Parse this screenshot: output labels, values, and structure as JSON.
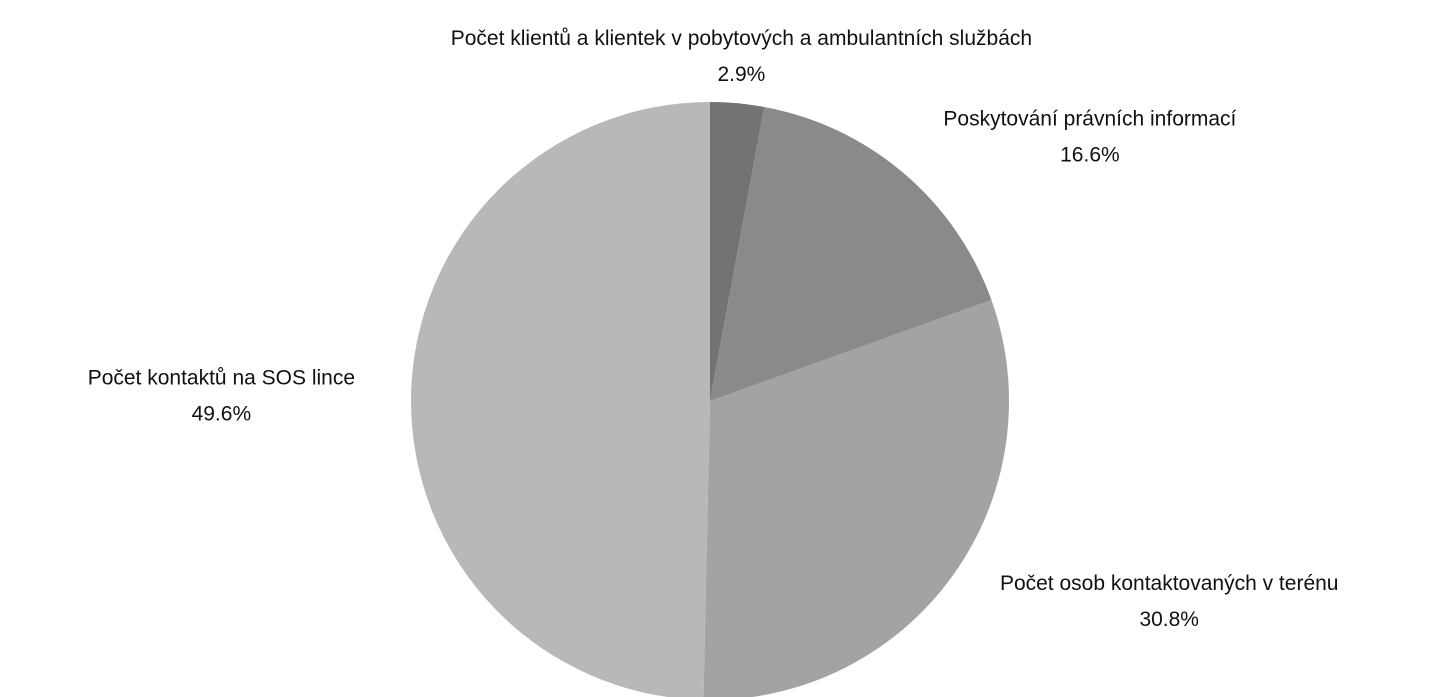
{
  "chart_data": {
    "type": "pie",
    "categories": [
      "Počet klientů a klientek v pobytových a ambulantních službách",
      "Poskytování právních informací",
      "Počet osob kontaktovaných v terénu",
      "Počet kontaktů na SOS lince"
    ],
    "values": [
      2.9,
      16.6,
      30.8,
      49.6
    ],
    "value_labels": [
      "2.9%",
      "16.6%",
      "30.8%",
      "49.6%"
    ],
    "colors": [
      "#737373",
      "#8a8a8a",
      "#a3a3a3",
      "#b8b8b8"
    ]
  }
}
